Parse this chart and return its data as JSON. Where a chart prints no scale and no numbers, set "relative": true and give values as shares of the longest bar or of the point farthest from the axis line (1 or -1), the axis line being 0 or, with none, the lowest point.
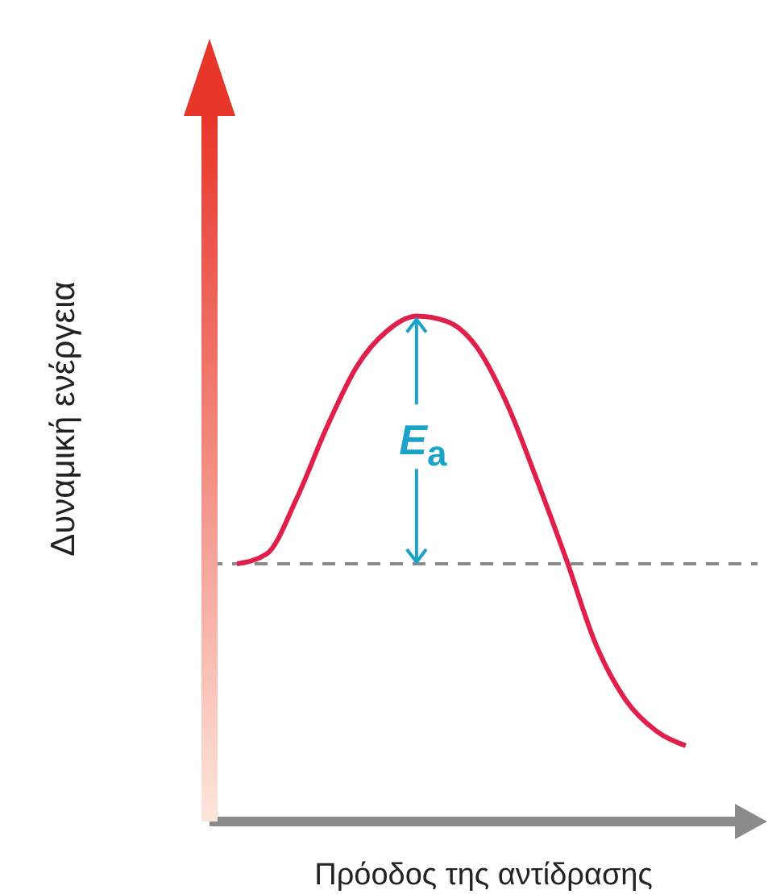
{
  "chart_data": {
    "type": "line",
    "relative": true,
    "xlabel": "Πρόοδος της αντίδρασης",
    "ylabel": "Δυναμική ενέργεια",
    "categories": [
      null,
      null,
      null,
      null,
      null,
      null,
      null,
      null,
      null,
      null,
      null,
      null,
      null,
      null,
      null,
      null
    ],
    "series": [
      {
        "color": "#e0204a",
        "values": [
          0.51,
          0.53,
          0.64,
          0.78,
          0.9,
          0.97,
          1,
          0.99,
          0.94,
          0.83,
          0.68,
          0.52,
          0.35,
          0.24,
          0.18,
          0.15
        ]
      }
    ],
    "ref_lines": [
      {
        "axis": "y",
        "value": 0.51,
        "color": "#8a8a8a",
        "line_style": "dashed"
      }
    ],
    "annotations": [
      "E$_{a}$"
    ],
    "marker": "none"
  }
}
